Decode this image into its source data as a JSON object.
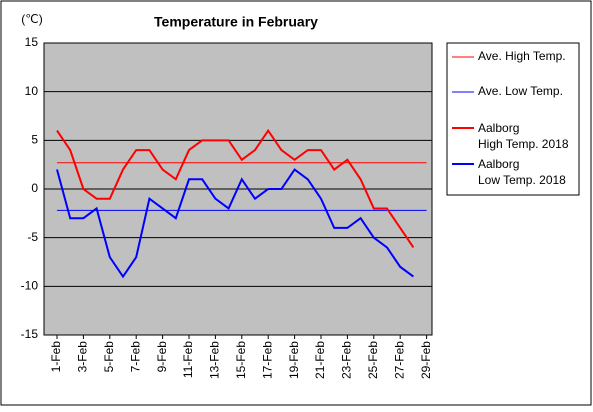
{
  "chart_data": {
    "type": "line",
    "title": "Temperature in February",
    "y_label": "(℃)",
    "categories": [
      "1-Feb",
      null,
      "3-Feb",
      null,
      "5-Feb",
      null,
      "7-Feb",
      null,
      "9-Feb",
      null,
      "11-Feb",
      null,
      "13-Feb",
      null,
      "15-Feb",
      null,
      "17-Feb",
      null,
      "19-Feb",
      null,
      "21-Feb",
      null,
      "23-Feb",
      null,
      "25-Feb",
      null,
      "27-Feb",
      null,
      "29-Feb"
    ],
    "ylim": [
      -15,
      15
    ],
    "yticks": [
      -15,
      -10,
      -5,
      0,
      5,
      10,
      15
    ],
    "grid": true,
    "series": [
      {
        "name": "Ave. High Temp.",
        "color": "#ff0000",
        "width": 1,
        "values": [
          2.7,
          2.7,
          2.7,
          2.7,
          2.7,
          2.7,
          2.7,
          2.7,
          2.7,
          2.7,
          2.7,
          2.7,
          2.7,
          2.7,
          2.7,
          2.7,
          2.7,
          2.7,
          2.7,
          2.7,
          2.7,
          2.7,
          2.7,
          2.7,
          2.7,
          2.7,
          2.7,
          2.7,
          2.7
        ]
      },
      {
        "name": "Ave. Low Temp.",
        "color": "#0000ff",
        "width": 1,
        "values": [
          -2.2,
          -2.2,
          -2.2,
          -2.2,
          -2.2,
          -2.2,
          -2.2,
          -2.2,
          -2.2,
          -2.2,
          -2.2,
          -2.2,
          -2.2,
          -2.2,
          -2.2,
          -2.2,
          -2.2,
          -2.2,
          -2.2,
          -2.2,
          -2.2,
          -2.2,
          -2.2,
          -2.2,
          -2.2,
          -2.2,
          -2.2,
          -2.2,
          -2.2
        ]
      },
      {
        "name": [
          "Aalborg",
          "High Temp. 2018"
        ],
        "color": "#ff0000",
        "width": 2,
        "values": [
          6,
          4,
          0,
          -1,
          -1,
          2,
          4,
          4,
          2,
          1,
          4,
          5,
          5,
          5,
          3,
          4,
          6,
          4,
          3,
          4,
          4,
          2,
          3,
          1,
          -2,
          -2,
          -4,
          -6,
          null
        ]
      },
      {
        "name": [
          "Aalborg",
          "Low Temp. 2018"
        ],
        "color": "#0000ff",
        "width": 2,
        "values": [
          2,
          -3,
          -3,
          -2,
          -7,
          -9,
          -7,
          -1,
          -2,
          -3,
          1,
          1,
          -1,
          -2,
          1,
          -1,
          0,
          0,
          2,
          1,
          -1,
          -4,
          -4,
          -3,
          -5,
          -6,
          -8,
          -9,
          null
        ]
      }
    ]
  }
}
